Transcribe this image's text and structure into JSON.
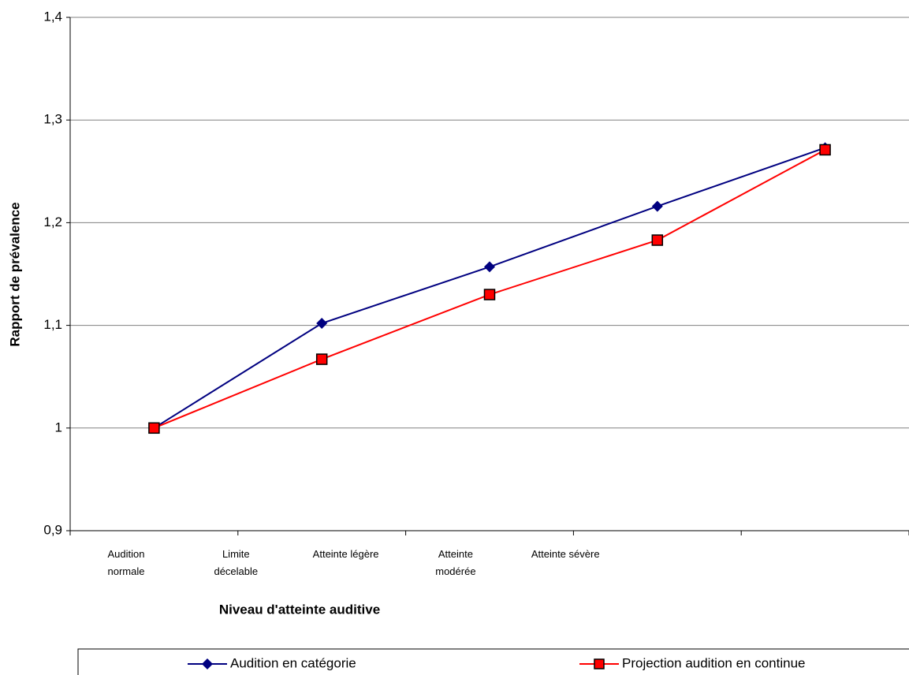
{
  "chart_data": {
    "type": "line",
    "x_label": "Niveau d'atteinte auditive",
    "y_label": "Rapport de prévalence",
    "categories": [
      "Audition normale",
      "Limite décelable",
      "Atteinte légère",
      "Atteinte modérée",
      "Atteinte sévère"
    ],
    "series": [
      {
        "name": "Audition en catégorie",
        "color": "#000080",
        "marker": "diamond",
        "values": [
          1.0,
          1.102,
          1.157,
          1.216,
          1.273
        ]
      },
      {
        "name": "Projection audition en continue",
        "color": "#ff0000",
        "marker": "square",
        "values": [
          1.0,
          1.067,
          1.13,
          1.183,
          1.271
        ]
      }
    ],
    "ylim": [
      0.9,
      1.4
    ],
    "yticks": [
      {
        "value": 0.9,
        "label": "0,9"
      },
      1,
      {
        "value": 1.1,
        "label": "1,1"
      },
      {
        "value": 1.2,
        "label": "1,2"
      },
      {
        "value": 1.3,
        "label": "1,3"
      },
      {
        "value": 1.4,
        "label": "1,4"
      }
    ],
    "grid": true,
    "legend": "bottom"
  }
}
